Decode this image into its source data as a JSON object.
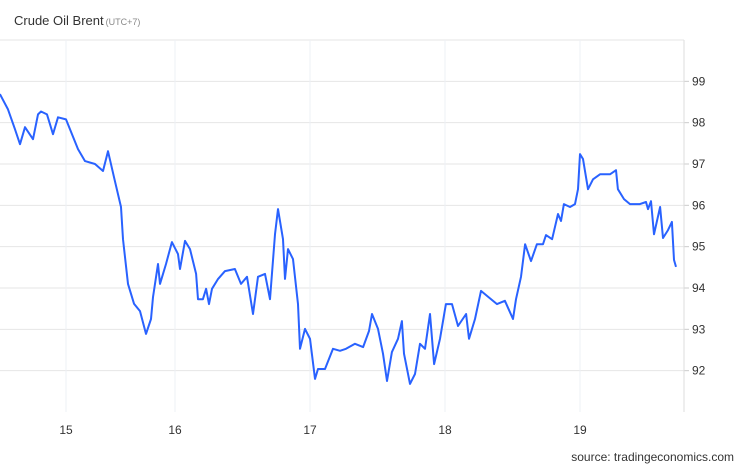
{
  "title": "Crude Oil Brent",
  "timezone": "(UTC+7)",
  "source": "source: tradingeconomics.com",
  "chart_data": {
    "type": "line",
    "title": "Crude Oil Brent",
    "xlabel": "",
    "ylabel": "",
    "x_ticks": [
      "15",
      "16",
      "17",
      "18",
      "19"
    ],
    "y_ticks": [
      "92",
      "93",
      "94",
      "95",
      "96",
      "97",
      "98",
      "99"
    ],
    "ylim": [
      91,
      100
    ],
    "xlim": [
      14.394,
      19.8
    ],
    "grid": true,
    "line_color": "#2962ff",
    "grid_color": "#e6e6e6",
    "series": [
      {
        "x": [
          14.394,
          14.468,
          14.532,
          14.578,
          14.624,
          14.697,
          14.743,
          14.771,
          14.826,
          14.881,
          14.927,
          15.0,
          15.055,
          15.11,
          15.174,
          15.266,
          15.339,
          15.385,
          15.44,
          15.505,
          15.523,
          15.569,
          15.624,
          15.679,
          15.734,
          15.78,
          15.798,
          15.844,
          15.862,
          15.917,
          15.972,
          16.022,
          16.037,
          16.074,
          16.111,
          16.156,
          16.17,
          16.207,
          16.23,
          16.252,
          16.274,
          16.319,
          16.37,
          16.444,
          16.489,
          16.533,
          16.578,
          16.615,
          16.667,
          16.704,
          16.741,
          16.763,
          16.8,
          16.815,
          16.837,
          16.874,
          16.911,
          16.926,
          16.963,
          17.0,
          17.037,
          17.059,
          17.111,
          17.17,
          17.222,
          17.267,
          17.333,
          17.393,
          17.437,
          17.459,
          17.504,
          17.541,
          17.57,
          17.607,
          17.652,
          17.681,
          17.696,
          17.741,
          17.778,
          17.815,
          17.852,
          17.889,
          17.919,
          17.963,
          18.007,
          18.052,
          18.096,
          18.156,
          18.178,
          18.222,
          18.267,
          18.311,
          18.385,
          18.444,
          18.504,
          18.526,
          18.563,
          18.593,
          18.637,
          18.681,
          18.726,
          18.748,
          18.793,
          18.837,
          18.859,
          18.881,
          18.926,
          18.963,
          18.985,
          19.0,
          19.022,
          19.059,
          19.096,
          19.148,
          19.222,
          19.267,
          19.281,
          19.326,
          19.37,
          19.444,
          19.489,
          19.504,
          19.526,
          19.548,
          19.593,
          19.615,
          19.652,
          19.681,
          19.696,
          19.711
        ],
        "values": [
          98.69,
          98.32,
          97.84,
          97.48,
          97.89,
          97.6,
          98.2,
          98.27,
          98.2,
          97.72,
          98.13,
          98.08,
          97.72,
          97.36,
          97.07,
          97.0,
          96.83,
          97.31,
          96.68,
          95.96,
          95.18,
          94.1,
          93.62,
          93.44,
          92.89,
          93.25,
          93.78,
          94.58,
          94.1,
          94.58,
          95.11,
          94.82,
          94.46,
          95.14,
          94.94,
          94.34,
          93.73,
          93.73,
          93.98,
          93.61,
          93.98,
          94.22,
          94.41,
          94.46,
          94.1,
          94.27,
          93.37,
          94.27,
          94.34,
          93.73,
          95.3,
          95.91,
          95.18,
          94.22,
          94.94,
          94.7,
          93.61,
          92.53,
          93.01,
          92.77,
          91.8,
          92.04,
          92.04,
          92.53,
          92.48,
          92.53,
          92.65,
          92.57,
          92.96,
          93.37,
          93.01,
          92.41,
          91.75,
          92.45,
          92.77,
          93.2,
          92.41,
          91.68,
          91.92,
          92.65,
          92.53,
          93.37,
          92.16,
          92.77,
          93.61,
          93.61,
          93.08,
          93.37,
          92.77,
          93.25,
          93.93,
          93.81,
          93.61,
          93.69,
          93.25,
          93.73,
          94.27,
          95.06,
          94.65,
          95.06,
          95.06,
          95.28,
          95.18,
          95.79,
          95.62,
          96.03,
          95.96,
          96.03,
          96.39,
          97.24,
          97.12,
          96.39,
          96.63,
          96.75,
          96.75,
          96.85,
          96.39,
          96.15,
          96.03,
          96.03,
          96.08,
          95.91,
          96.1,
          95.3,
          95.96,
          95.21,
          95.4,
          95.6,
          94.68,
          94.51
        ]
      }
    ]
  }
}
